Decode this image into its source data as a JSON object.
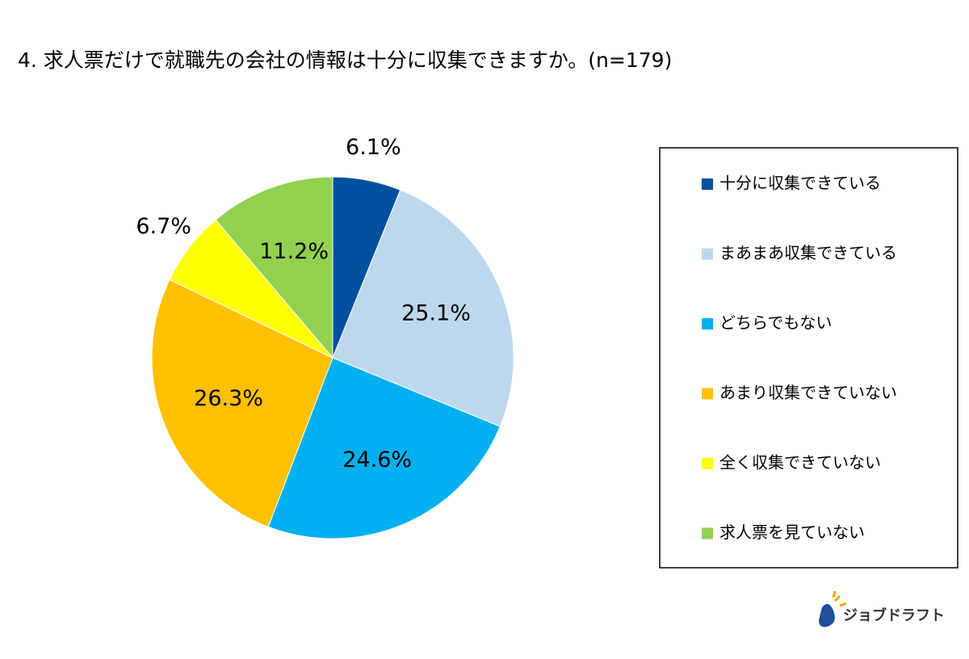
{
  "chart_data": {
    "type": "pie",
    "title": "4. 求人票だけで就職先の会社の情報は十分に収集できますか。(n=179)",
    "categories": [
      "十分に収集できている",
      "まあまあ収集できている",
      "どちらでもない",
      "あまり収集できていない",
      "全く収集できていない",
      "求人票を見ていない"
    ],
    "values": [
      6.1,
      25.1,
      24.6,
      26.3,
      6.7,
      11.2
    ],
    "value_labels": [
      "6.1%",
      "25.1%",
      "24.6%",
      "26.3%",
      "6.7%",
      "11.2%"
    ],
    "colors": [
      "#0050a0",
      "#bdd7ee",
      "#00b0f0",
      "#ffc000",
      "#ffff00",
      "#92d050"
    ],
    "legend": "right"
  },
  "brand": "ジョブドラフト"
}
